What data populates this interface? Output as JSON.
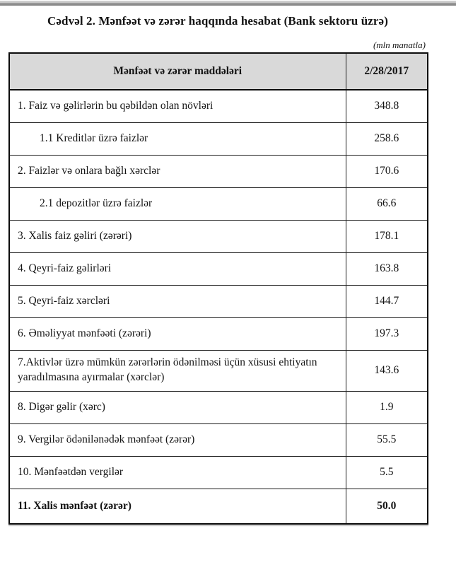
{
  "page": {
    "title": "Cədvəl 2. Mənfəət və zərər haqqında hesabat (Bank sektoru üzrə)",
    "unit_note": "(mln manatla)"
  },
  "colors": {
    "header_bg": "#d9d9d9",
    "border": "#1c1c1c",
    "top_bar": "#8d8d8d"
  },
  "table": {
    "header": {
      "items_label": "Mənfəət və zərər maddələri",
      "date_label": "2/28/2017"
    },
    "rows": [
      {
        "label": "1. Faiz və gəlirlərin bu qəbildən olan növləri",
        "value": "348.8",
        "indent": false,
        "tall": false,
        "bold": false
      },
      {
        "label": "1.1 Kreditlər üzrə faizlər",
        "value": "258.6",
        "indent": true,
        "tall": false,
        "bold": false
      },
      {
        "label": "2. Faizlər və onlara bağlı xərclər",
        "value": "170.6",
        "indent": false,
        "tall": false,
        "bold": false
      },
      {
        "label": "2.1 depozitlər üzrə faizlər",
        "value": "66.6",
        "indent": true,
        "tall": false,
        "bold": false
      },
      {
        "label": "3. Xalis faiz gəliri (zərəri)",
        "value": "178.1",
        "indent": false,
        "tall": false,
        "bold": false
      },
      {
        "label": "4. Qeyri-faiz gəlirləri",
        "value": "163.8",
        "indent": false,
        "tall": false,
        "bold": false
      },
      {
        "label": "5. Qeyri-faiz xərcləri",
        "value": "144.7",
        "indent": false,
        "tall": false,
        "bold": false
      },
      {
        "label": "6. Əməliyyat mənfəəti (zərəri)",
        "value": "197.3",
        "indent": false,
        "tall": false,
        "bold": false
      },
      {
        "label": "7.Aktivlər üzrə mümkün zərərlərin ödənilməsi üçün xüsusi ehtiyatın yaradılmasına ayırmalar (xərclər)",
        "value": "143.6",
        "indent": false,
        "tall": true,
        "bold": false
      },
      {
        "label": "8. Digər gəlir (xərc)",
        "value": "1.9",
        "indent": false,
        "tall": false,
        "bold": false
      },
      {
        "label": "9. Vergilər ödənilənədək mənfəət (zərər)",
        "value": "55.5",
        "indent": false,
        "tall": false,
        "bold": false
      },
      {
        "label": "10. Mənfəətdən vergilər",
        "value": "5.5",
        "indent": false,
        "tall": false,
        "bold": false
      },
      {
        "label": "11. Xalis mənfəət (zərər)",
        "value": "50.0",
        "indent": false,
        "tall": false,
        "bold": true
      }
    ]
  }
}
